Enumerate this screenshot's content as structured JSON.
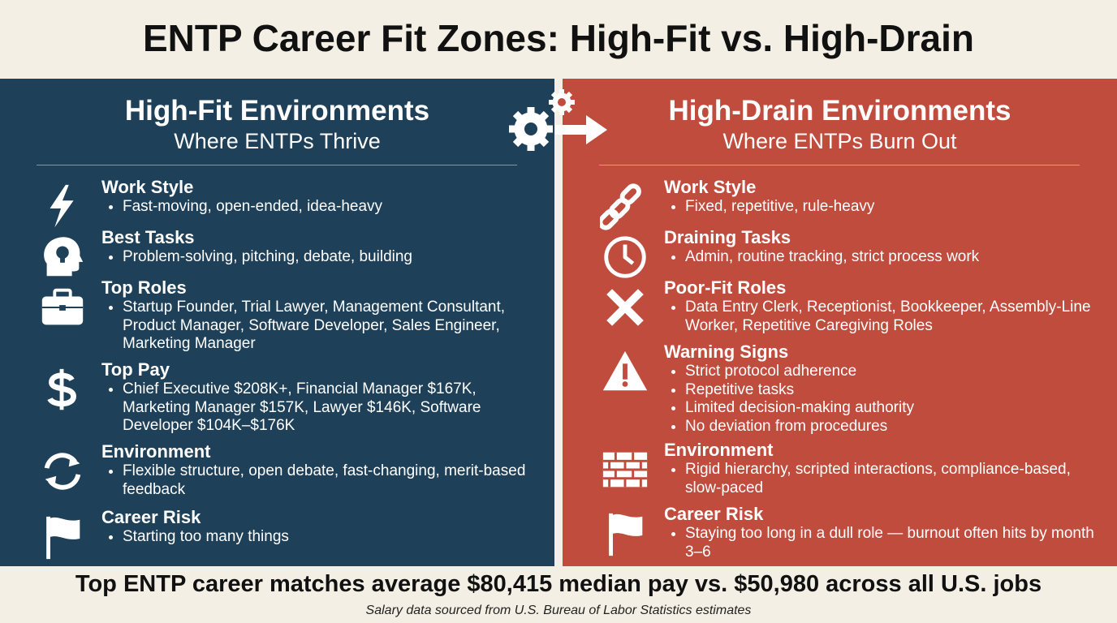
{
  "header": {
    "title": "ENTP Career Fit Zones: High-Fit vs. High-Drain"
  },
  "panels": [
    {
      "title": "High-Fit Environments",
      "subtitle": "Where ENTPs Thrive",
      "sections": [
        {
          "heading": "Work Style",
          "bullets": [
            "Fast-moving, open-ended, idea-heavy"
          ]
        },
        {
          "heading": "Best Tasks",
          "bullets": [
            "Problem-solving, pitching, debate, building"
          ]
        },
        {
          "heading": "Top Roles",
          "bullets": [
            "Startup Founder, Trial Lawyer, Management Consultant, Product Manager, Software Developer, Sales Engineer, Marketing Manager"
          ]
        },
        {
          "heading": "Top Pay",
          "bullets": [
            "Chief Executive $208K+, Financial Manager $167K, Marketing Manager $157K, Lawyer $146K, Software Developer $104K–$176K"
          ]
        },
        {
          "heading": "Environment",
          "bullets": [
            "Flexible structure, open debate, fast-changing, merit-based feedback"
          ]
        },
        {
          "heading": "Career Risk",
          "bullets": [
            "Starting too many things"
          ]
        }
      ]
    },
    {
      "title": "High-Drain Environments",
      "subtitle": "Where ENTPs Burn Out",
      "sections": [
        {
          "heading": "Work Style",
          "bullets": [
            "Fixed, repetitive, rule-heavy"
          ]
        },
        {
          "heading": "Draining Tasks",
          "bullets": [
            "Admin, routine tracking, strict process work"
          ]
        },
        {
          "heading": "Poor-Fit Roles",
          "bullets": [
            "Data Entry Clerk, Receptionist, Bookkeeper, Assembly-Line Worker, Repetitive Caregiving Roles"
          ]
        },
        {
          "heading": "Warning Signs",
          "bullets": [
            "Strict protocol adherence",
            "Repetitive tasks",
            "Limited decision-making authority",
            "No deviation from procedures"
          ]
        },
        {
          "heading": "Environment",
          "bullets": [
            "Rigid hierarchy, scripted interactions, compliance-based, slow-paced"
          ]
        },
        {
          "heading": "Career Risk",
          "bullets": [
            "Staying too long in a dull role — burnout often hits by month 3–6"
          ]
        }
      ]
    }
  ],
  "footer": {
    "headline": "Top ENTP career matches average $80,415 median pay vs. $50,980 across all U.S. jobs",
    "source": "Salary data sourced from U.S. Bureau of Labor Statistics estimates"
  }
}
